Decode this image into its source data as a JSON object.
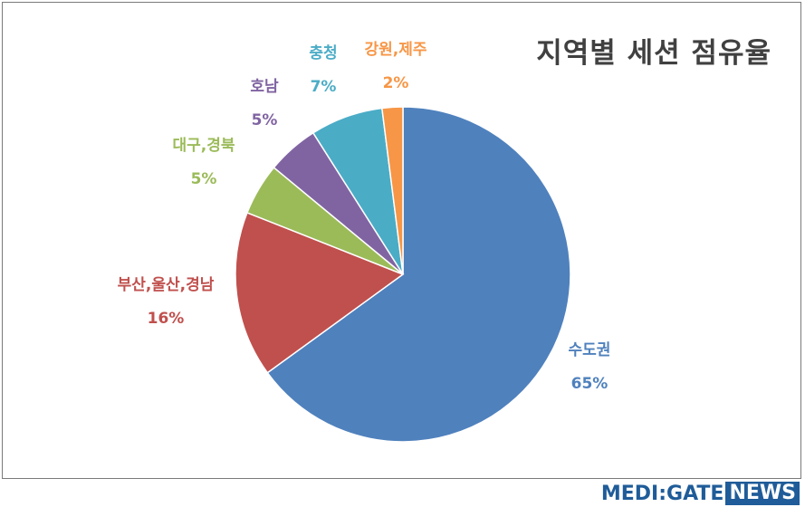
{
  "chart_data": {
    "type": "pie",
    "title": "지역별 세션 점유율",
    "slices": [
      {
        "label": "수도권",
        "value": 65,
        "display": "65%",
        "color": "#4F81BD"
      },
      {
        "label": "부산,울산,경남",
        "value": 16,
        "display": "16%",
        "color": "#C0504D"
      },
      {
        "label": "대구,경북",
        "value": 5,
        "display": "5%",
        "color": "#9BBB59"
      },
      {
        "label": "호남",
        "value": 5,
        "display": "5%",
        "color": "#8064A2"
      },
      {
        "label": "충청",
        "value": 7,
        "display": "7%",
        "color": "#4BACC6"
      },
      {
        "label": "강원,제주",
        "value": 2,
        "display": "2%",
        "color": "#F79646"
      }
    ]
  },
  "brand": {
    "part1": "MEDI:GATE",
    "part2": "NEWS",
    "color": "#1F5C99"
  }
}
